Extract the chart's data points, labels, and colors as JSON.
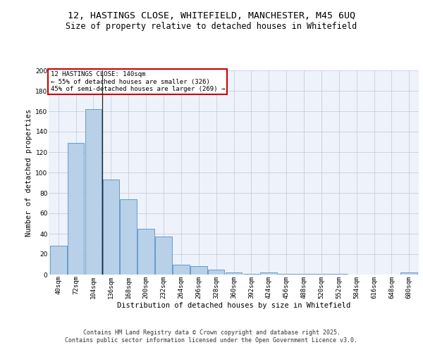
{
  "title_line1": "12, HASTINGS CLOSE, WHITEFIELD, MANCHESTER, M45 6UQ",
  "title_line2": "Size of property relative to detached houses in Whitefield",
  "xlabel": "Distribution of detached houses by size in Whitefield",
  "ylabel": "Number of detached properties",
  "bar_color": "#b8d0e8",
  "bar_edge_color": "#5590c8",
  "background_color": "#eef2fa",
  "grid_color": "#c0c8d8",
  "annotation_box_color": "#cc0000",
  "annotation_text": "12 HASTINGS CLOSE: 140sqm\n← 55% of detached houses are smaller (326)\n45% of semi-detached houses are larger (269) →",
  "property_size_sqm": 140,
  "categories": [
    "40sqm",
    "72sqm",
    "104sqm",
    "136sqm",
    "168sqm",
    "200sqm",
    "232sqm",
    "264sqm",
    "296sqm",
    "328sqm",
    "360sqm",
    "392sqm",
    "424sqm",
    "456sqm",
    "488sqm",
    "520sqm",
    "552sqm",
    "584sqm",
    "616sqm",
    "648sqm",
    "680sqm"
  ],
  "values": [
    28,
    129,
    162,
    93,
    74,
    45,
    37,
    10,
    8,
    5,
    2,
    1,
    2,
    1,
    1,
    1,
    1,
    0,
    0,
    0,
    2
  ],
  "ylim": [
    0,
    200
  ],
  "yticks": [
    0,
    20,
    40,
    60,
    80,
    100,
    120,
    140,
    160,
    180,
    200
  ],
  "footer_line1": "Contains HM Land Registry data © Crown copyright and database right 2025.",
  "footer_line2": "Contains public sector information licensed under the Open Government Licence v3.0.",
  "title_fontsize": 9.5,
  "subtitle_fontsize": 8.5,
  "axis_label_fontsize": 7.5,
  "tick_fontsize": 6.5,
  "annotation_fontsize": 6.5,
  "footer_fontsize": 6.0
}
